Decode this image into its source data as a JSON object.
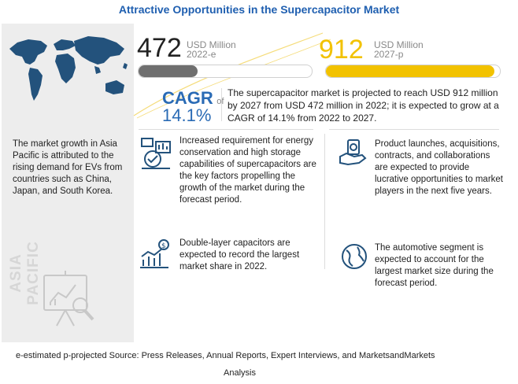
{
  "header": {
    "title": "Attractive Opportunities in the Supercapacitor Market"
  },
  "stats": {
    "left": {
      "value": "472",
      "unit": "USD Million",
      "period": "2022-e",
      "bar_fraction": 0.34,
      "bar_color": "#6f6f6f"
    },
    "right": {
      "value": "912",
      "unit": "USD Million",
      "period": "2027-p",
      "bar_fraction": 0.97,
      "bar_color": "#f2c200"
    }
  },
  "cagr": {
    "label": "CAGR",
    "of": "of",
    "value": "14.1%"
  },
  "summary": "The supercapacitor market is projected to reach USD 912 million by 2027 from USD 472 million in 2022; it is expected to grow at a CAGR of 14.1% from 2022 to 2027.",
  "sidebar": {
    "region_text": "The market growth in Asia Pacific is attributed to the rising demand for EVs from countries such as China, Japan, and South Korea.",
    "region_label": "ASIA PACIFIC"
  },
  "cards": [
    {
      "icon": "energy-efficiency-icon",
      "text": "Increased requirement for energy conservation and high storage capabilities of supercapacitors are the key factors propelling the growth of the market during the forecast period."
    },
    {
      "icon": "product-launch-icon",
      "text": "Product launches, acquisitions, contracts, and collaborations are expected to provide lucrative opportunities to market players in the next five years."
    },
    {
      "icon": "market-share-chart-icon",
      "text": "Double-layer capacitors are expected to record the largest market share in 2022."
    },
    {
      "icon": "globe-icon",
      "text": "The automotive segment is expected to account for the largest market size during the forecast period."
    }
  ],
  "footer": {
    "line1": "e-estimated p-projected Source: Press Releases, Annual Reports, Expert Interviews, and MarketsandMarkets",
    "line2": "Analysis"
  },
  "colors": {
    "title": "#1f5fb0",
    "accent_blue": "#2a6bb5",
    "accent_yellow": "#f2c200",
    "gray_bar": "#6f6f6f"
  }
}
